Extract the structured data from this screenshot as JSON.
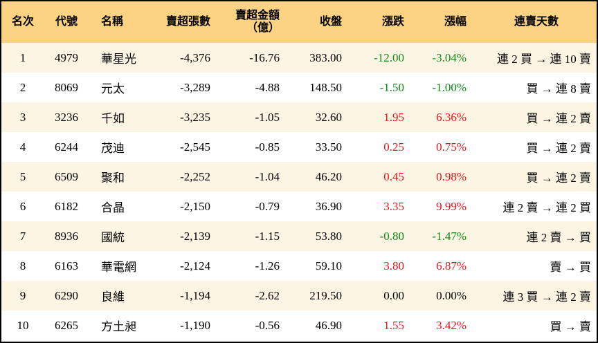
{
  "table": {
    "columns": [
      "名次",
      "代號",
      "名稱",
      "賣超張數",
      "賣超金額\n（億）",
      "收盤",
      "漲跌",
      "漲幅",
      "連賣天數"
    ],
    "rows": [
      [
        "1",
        "4979",
        "華星光",
        "-4,376",
        "-16.76",
        "383.00",
        "-12.00",
        "-3.04%",
        "連 2 買 → 連 10 賣"
      ],
      [
        "2",
        "8069",
        "元太",
        "-3,289",
        "-4.88",
        "148.50",
        "-1.50",
        "-1.00%",
        "買 → 連 8 賣"
      ],
      [
        "3",
        "3236",
        "千如",
        "-3,235",
        "-1.05",
        "32.60",
        "1.95",
        "6.36%",
        "買 → 連 2 賣"
      ],
      [
        "4",
        "6244",
        "茂迪",
        "-2,545",
        "-0.85",
        "33.50",
        "0.25",
        "0.75%",
        "買 → 連 2 賣"
      ],
      [
        "5",
        "6509",
        "聚和",
        "-2,252",
        "-1.04",
        "46.20",
        "0.45",
        "0.98%",
        "買 → 連 2 賣"
      ],
      [
        "6",
        "6182",
        "合晶",
        "-2,150",
        "-0.79",
        "36.90",
        "3.35",
        "9.99%",
        "連 2 賣 → 連 2 買"
      ],
      [
        "7",
        "8936",
        "國統",
        "-2,139",
        "-1.15",
        "53.80",
        "-0.80",
        "-1.47%",
        "連 2 賣 → 買"
      ],
      [
        "8",
        "6163",
        "華電網",
        "-2,124",
        "-1.26",
        "59.10",
        "3.80",
        "6.87%",
        "賣 → 買"
      ],
      [
        "9",
        "6290",
        "良維",
        "-1,194",
        "-2.62",
        "219.50",
        "0.00",
        "0.00%",
        "連 3 買 → 連 2 賣"
      ],
      [
        "10",
        "6265",
        "方土昶",
        "-1,190",
        "-0.56",
        "46.90",
        "1.55",
        "3.42%",
        "買 → 賣"
      ]
    ]
  }
}
